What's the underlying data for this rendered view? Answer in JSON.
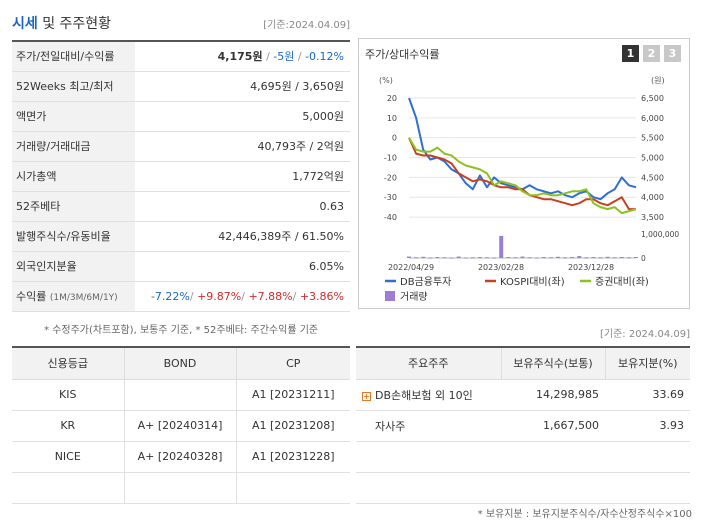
{
  "header": {
    "title_accent": "시세",
    "title_rest": " 및 주주현황",
    "date": "[기준:2024.04.09]"
  },
  "info": {
    "price_label": "주가/전일대비/수익률",
    "price_value": "4,175원",
    "price_change": "-5원",
    "price_rate": "-0.12%",
    "week52_label": "52Weeks 최고/최저",
    "week52_value": "4,695원 / 3,650원",
    "face_label": "액면가",
    "face_value": "5,000원",
    "volume_label": "거래량/거래대금",
    "volume_value": "40,793주 / 2억원",
    "mcap_label": "시가총액",
    "mcap_value": "1,772억원",
    "beta_label": "52주베타",
    "beta_value": "0.63",
    "shares_label": "발행주식수/유동비율",
    "shares_value": "42,446,389주 / 61.50%",
    "foreign_label": "외국인지분율",
    "foreign_value": "6.05%",
    "return_label": "수익률",
    "return_period": "(1M/3M/6M/1Y)",
    "return_1m": "-7.22%",
    "return_3m": "+9.87%",
    "return_6m": "+7.88%",
    "return_1y": "+3.86%"
  },
  "footnote1": "* 수정주가(차트포함), 보통주 기준, * 52주베타: 주간수익률 기준",
  "date2": "[기준: 2024.04.09]",
  "chart": {
    "title": "주가/상대수익률",
    "tabs": [
      "1",
      "2",
      "3"
    ],
    "left_unit": "(%)",
    "right_unit": "(원)",
    "legend": [
      "DB금융투자",
      "KOSPI대비(좌)",
      "증권대비(좌)",
      "거래량"
    ],
    "colors": {
      "db": "#2e6fd6",
      "kospi": "#c8401e",
      "sector": "#8cc21f",
      "volume": "#9b7fd6"
    }
  },
  "chart_data": {
    "type": "line",
    "x_ticks": [
      "2022/04/29",
      "2023/02/28",
      "2023/12/28"
    ],
    "left_axis": {
      "ticks": [
        "20",
        "10",
        "0",
        "-10",
        "-20",
        "-30",
        "-40"
      ],
      "ylim": [
        -45,
        22
      ]
    },
    "right_axis": {
      "ticks": [
        "6,500",
        "6,000",
        "5,500",
        "5,000",
        "4,500",
        "4,000",
        "3,500"
      ],
      "ylim": [
        3250,
        6600
      ]
    },
    "volume_axis": {
      "ticks": [
        "1,000,000",
        "0"
      ],
      "ylim": [
        0,
        1000000
      ]
    },
    "series": [
      {
        "name": "DB금융투자",
        "axis": "right",
        "values": [
          6500,
          6000,
          5200,
          4950,
          5000,
          4900,
          4700,
          4600,
          4350,
          4200,
          4550,
          4250,
          4500,
          4350,
          4300,
          4250,
          4200,
          4300,
          4200,
          4150,
          4100,
          4150,
          4050,
          4000,
          4100,
          4150,
          4000,
          3950,
          4100,
          4200,
          4500,
          4300,
          4250
        ]
      },
      {
        "name": "KOSPI대비(좌)",
        "axis": "left",
        "values": [
          0,
          -8,
          -9,
          -9,
          -10,
          -11,
          -13,
          -18,
          -20,
          -22,
          -21,
          -22,
          -24,
          -25,
          -25,
          -26,
          -26,
          -29,
          -30,
          -31,
          -31,
          -32,
          -33,
          -34,
          -33,
          -31,
          -31,
          -33,
          -34,
          -32,
          -30,
          -36,
          -36
        ]
      },
      {
        "name": "증권대비(좌)",
        "axis": "left",
        "values": [
          0,
          -6,
          -7,
          -7,
          -5,
          -8,
          -9,
          -12,
          -14,
          -15,
          -16,
          -18,
          -24,
          -22,
          -23,
          -24,
          -27,
          -29,
          -29,
          -28,
          -29,
          -29,
          -28,
          -27,
          -27,
          -26,
          -33,
          -35,
          -36,
          -35,
          -38,
          -37,
          -36
        ]
      },
      {
        "name": "거래량",
        "axis": "volume",
        "type": "bar",
        "values": [
          60000,
          30000,
          50000,
          20000,
          40000,
          30000,
          20000,
          60000,
          20000,
          30000,
          40000,
          30000,
          20000,
          920000,
          40000,
          30000,
          60000,
          30000,
          20000,
          40000,
          30000,
          50000,
          30000,
          40000,
          80000,
          30000,
          40000,
          30000,
          50000,
          30000,
          40000,
          30000,
          40000
        ]
      }
    ]
  },
  "credit": {
    "headers": [
      "신용등급",
      "BOND",
      "CP"
    ],
    "rows": [
      [
        "KIS",
        "",
        "A1 [20231211]"
      ],
      [
        "KR",
        "A+ [20240314]",
        "A1 [20231208]"
      ],
      [
        "NICE",
        "A+ [20240328]",
        "A1 [20231228]"
      ],
      [
        "",
        "",
        ""
      ]
    ]
  },
  "holders": {
    "headers": [
      "주요주주",
      "보유주식수(보통)",
      "보유지분(%)"
    ],
    "rows": [
      [
        "DB손해보험 외 10인",
        "14,298,985",
        "33.69"
      ],
      [
        "자사주",
        "1,667,500",
        "3.93"
      ],
      [
        "",
        "",
        ""
      ],
      [
        "",
        "",
        ""
      ]
    ]
  },
  "footnote2": "* 보유지분 : 보유지분주식수/자수산정주식수×100"
}
